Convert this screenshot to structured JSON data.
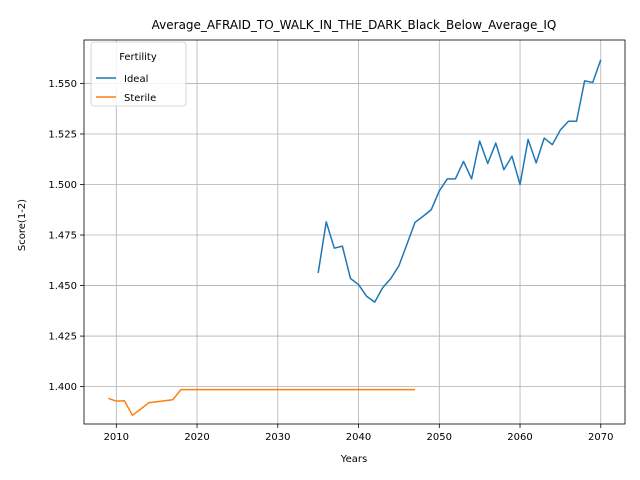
{
  "chart_data": {
    "type": "line",
    "title": "Average_AFRAID_TO_WALK_IN_THE_DARK_Black_Below_Average_IQ",
    "xlabel": "Years",
    "ylabel": "Score(1-2)",
    "xlim": [
      2006,
      2073
    ],
    "ylim": [
      1.3815,
      1.5715
    ],
    "xticks": [
      2010,
      2020,
      2030,
      2040,
      2050,
      2060,
      2070
    ],
    "yticks": [
      1.4,
      1.425,
      1.45,
      1.475,
      1.5,
      1.525,
      1.55
    ],
    "grid": true,
    "legend": {
      "title": "Fertility",
      "placement": "upper-left"
    },
    "series": [
      {
        "name": "Ideal",
        "color": "#1f77b4",
        "x": [
          2035,
          2036,
          2037,
          2038,
          2039,
          2040,
          2041,
          2042,
          2043,
          2044,
          2045,
          2046,
          2047,
          2048,
          2049,
          2050,
          2051,
          2052,
          2053,
          2054,
          2055,
          2056,
          2057,
          2058,
          2059,
          2060,
          2061,
          2062,
          2063,
          2064,
          2065,
          2066,
          2067,
          2068,
          2069,
          2070
        ],
        "y": [
          1.4562,
          1.4815,
          1.4685,
          1.4695,
          1.4535,
          1.4505,
          1.4447,
          1.4418,
          1.449,
          1.4535,
          1.4598,
          1.4705,
          1.4813,
          1.4843,
          1.4875,
          1.4968,
          1.5028,
          1.5028,
          1.5114,
          1.5028,
          1.5215,
          1.5104,
          1.5205,
          1.5073,
          1.514,
          1.5,
          1.5223,
          1.5107,
          1.523,
          1.5197,
          1.527,
          1.5313,
          1.5313,
          1.5513,
          1.5505,
          1.5617
        ]
      },
      {
        "name": "Sterile",
        "color": "#ff7f0e",
        "x": [
          2009,
          2010,
          2011,
          2012,
          2013,
          2014,
          2015,
          2016,
          2017,
          2018,
          2019,
          2020,
          2021,
          2022,
          2023,
          2024,
          2025,
          2026,
          2027,
          2028,
          2029,
          2030,
          2031,
          2032,
          2033,
          2034,
          2035,
          2036,
          2037,
          2038,
          2039,
          2040,
          2041,
          2042,
          2043,
          2044,
          2045,
          2046,
          2047
        ],
        "y": [
          1.3942,
          1.3928,
          1.393,
          1.3858,
          1.3888,
          1.392,
          1.3925,
          1.393,
          1.3935,
          1.3985,
          1.3985,
          1.3985,
          1.3985,
          1.3985,
          1.3985,
          1.3985,
          1.3985,
          1.3985,
          1.3985,
          1.3985,
          1.3985,
          1.3985,
          1.3985,
          1.3985,
          1.3985,
          1.3985,
          1.3985,
          1.3985,
          1.3985,
          1.3985,
          1.3985,
          1.3985,
          1.3985,
          1.3985,
          1.3985,
          1.3985,
          1.3985,
          1.3985,
          1.3985
        ]
      }
    ]
  }
}
